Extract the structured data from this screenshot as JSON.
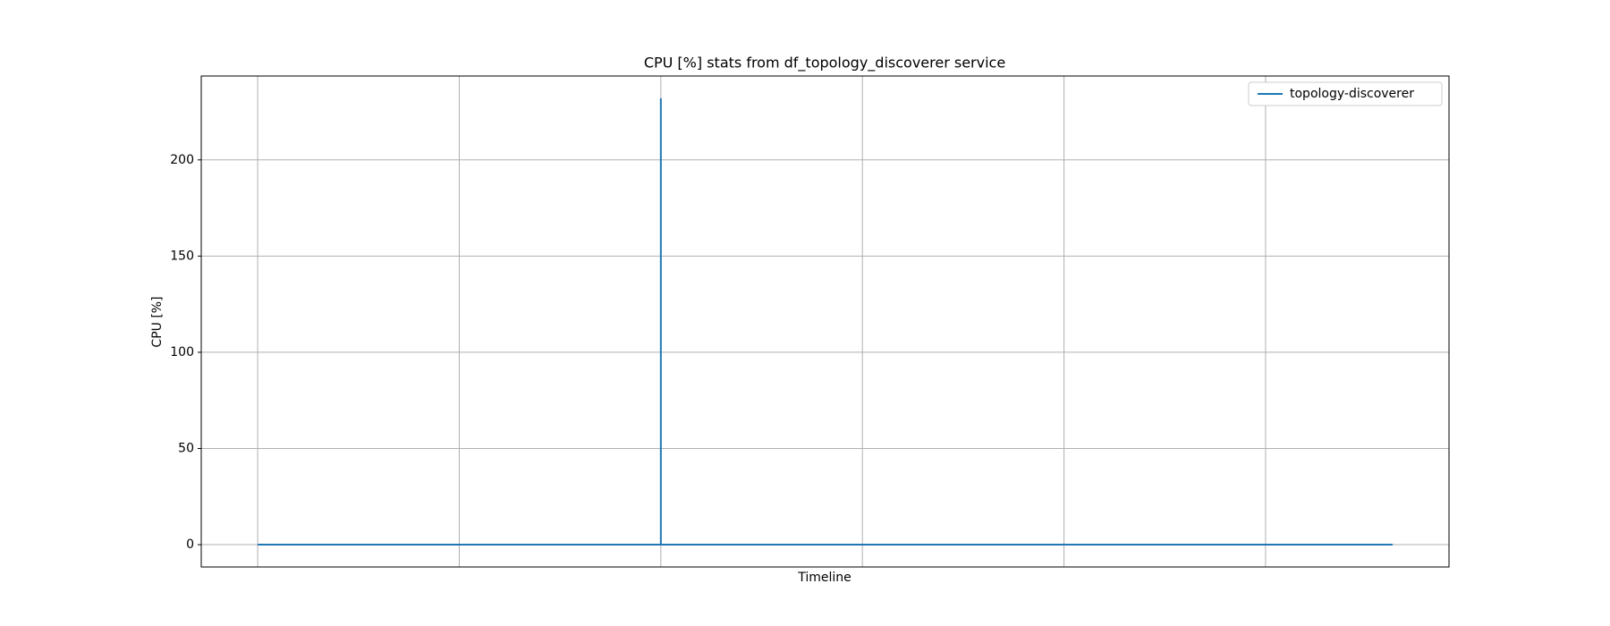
{
  "chart_data": {
    "type": "line",
    "title": "CPU [%] stats from df_topology_discoverer service",
    "xlabel": "Timeline",
    "ylabel": "CPU [%]",
    "x": [
      0,
      2,
      2,
      2,
      5.63
    ],
    "series": [
      {
        "name": "topology-discoverer",
        "color": "#1f77b4",
        "values": [
          0,
          0,
          232,
          0,
          0
        ]
      }
    ],
    "xlim": [
      -0.28,
      5.91
    ],
    "xticks": [
      0,
      1,
      2,
      3,
      4,
      5
    ],
    "xtick_labels": false,
    "ylim": [
      -11.6,
      243.6
    ],
    "yticks": [
      0,
      50,
      100,
      150,
      200
    ],
    "grid": true,
    "legend": "upper right"
  }
}
